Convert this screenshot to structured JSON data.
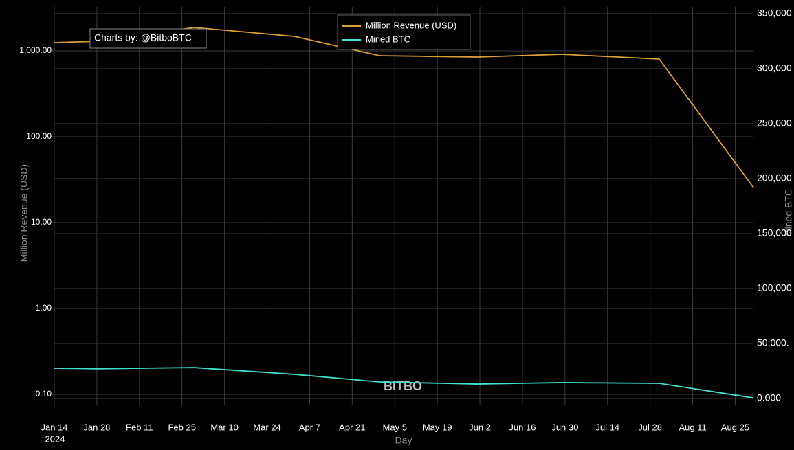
{
  "chart_data": {
    "type": "line",
    "annotation": "Charts by: @BitboBTC",
    "watermark": "BITBO",
    "x_label": "Day",
    "y_label": "Million Revenue (USD)",
    "y2_label": "Mined BTC",
    "x": [
      "2024-01-14",
      "2024-01-28",
      "2024-02-29",
      "2024-04-02",
      "2024-04-20",
      "2024-04-30",
      "2024-06-01",
      "2024-06-29",
      "2024-07-31",
      "2024-08-31"
    ],
    "series": [
      {
        "name": "Million Revenue (USD)",
        "color": "#d9a035",
        "values": [
          1247,
          1294,
          1870,
          1472,
          1057,
          879,
          847,
          912,
          802,
          25.6
        ]
      },
      {
        "name": "Mined BTC",
        "color": "#40e0d0",
        "axis": "y2",
        "values": [
          27500,
          27000,
          28100,
          21900,
          17500,
          15000,
          13100,
          14400,
          13750,
          500
        ]
      }
    ],
    "xlim": [
      "2024-01-14",
      "2024-08-31"
    ],
    "xticks": [
      {
        "value": "2024-01-14",
        "label": "Jan 14"
      },
      {
        "value": "2024-01-28",
        "label": "Jan 28"
      },
      {
        "value": "2024-02-11",
        "label": "Feb 11"
      },
      {
        "value": "2024-02-25",
        "label": "Feb 25"
      },
      {
        "value": "2024-03-10",
        "label": "Mar 10"
      },
      {
        "value": "2024-03-24",
        "label": "Mar 24"
      },
      {
        "value": "2024-04-07",
        "label": "Apr 7"
      },
      {
        "value": "2024-04-21",
        "label": "Apr 21"
      },
      {
        "value": "2024-05-05",
        "label": "May 5"
      },
      {
        "value": "2024-05-19",
        "label": "May 19"
      },
      {
        "value": "2024-06-02",
        "label": "Jun 2"
      },
      {
        "value": "2024-06-16",
        "label": "Jun 16"
      },
      {
        "value": "2024-06-30",
        "label": "Jun 30"
      },
      {
        "value": "2024-07-14",
        "label": "Jul 14"
      },
      {
        "value": "2024-07-28",
        "label": "Jul 28"
      },
      {
        "value": "2024-08-11",
        "label": "Aug 11"
      },
      {
        "value": "2024-08-25",
        "label": "Aug 25"
      }
    ],
    "x_year_label": "2024",
    "ylim": [
      0.0745,
      3250
    ],
    "log_y": true,
    "yticks": [
      {
        "value": 0.1,
        "label": "0.10"
      },
      {
        "value": 1,
        "label": "1.00"
      },
      {
        "value": 10,
        "label": "10.00"
      },
      {
        "value": 100,
        "label": "100.00"
      },
      {
        "value": 1000,
        "label": "1,000.00"
      }
    ],
    "y2lim": [
      -6250,
      356250
    ],
    "y2ticks": [
      {
        "value": 0,
        "label": "0.000"
      },
      {
        "value": 50000,
        "label": "50,000."
      },
      {
        "value": 100000,
        "label": "100,000"
      },
      {
        "value": 150000,
        "label": "150,000"
      },
      {
        "value": 200000,
        "label": "200,000"
      },
      {
        "value": 250000,
        "label": "250,000"
      },
      {
        "value": 300000,
        "label": "300,000"
      },
      {
        "value": 350000,
        "label": "350,000"
      }
    ],
    "grid": true,
    "legend": "top"
  }
}
